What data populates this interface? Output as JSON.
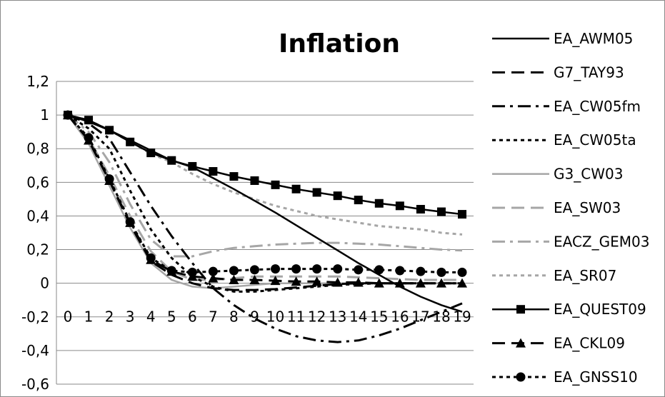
{
  "chart_data": {
    "type": "line",
    "title": "Inflation",
    "xlabel": "",
    "ylabel": "",
    "x": [
      0,
      1,
      2,
      3,
      4,
      5,
      6,
      7,
      8,
      9,
      10,
      11,
      12,
      13,
      14,
      15,
      16,
      17,
      18,
      19
    ],
    "x_tick_labels": [
      "0",
      "1",
      "2",
      "3",
      "4",
      "5",
      "6",
      "7",
      "8",
      "9",
      "10",
      "11",
      "12",
      "13",
      "14",
      "15",
      "16",
      "17",
      "18",
      "19"
    ],
    "y_tick_labels": [
      "1,2",
      "1",
      "0,8",
      "0,6",
      "0,4",
      "0,2",
      "0",
      "-0,2",
      "-0,4",
      "-0,6"
    ],
    "ylim": [
      -0.6,
      1.2
    ],
    "grid": "horizontal",
    "legend_position": "right",
    "series": [
      {
        "name": "EA_AWM05",
        "color": "#000000",
        "values": [
          1.0,
          0.96,
          0.91,
          0.85,
          0.79,
          0.73,
          0.69,
          0.625,
          0.56,
          0.49,
          0.42,
          0.345,
          0.27,
          0.195,
          0.12,
          0.05,
          -0.02,
          -0.08,
          -0.13,
          -0.17
        ]
      },
      {
        "name": "G7_TAY93",
        "color": "#000000",
        "values": [
          1.0,
          0.85,
          0.61,
          0.35,
          0.13,
          0.05,
          0.0,
          -0.03,
          -0.04,
          -0.04,
          -0.035,
          -0.025,
          -0.015,
          -0.005,
          0.0,
          0.0,
          0.0,
          0.0,
          0.0,
          0.0
        ]
      },
      {
        "name": "EA_CW05fm",
        "color": "#000000",
        "values": [
          1.0,
          0.95,
          0.86,
          0.66,
          0.46,
          0.28,
          0.12,
          -0.03,
          -0.13,
          -0.21,
          -0.27,
          -0.315,
          -0.34,
          -0.35,
          -0.34,
          -0.31,
          -0.27,
          -0.22,
          -0.17,
          -0.12
        ]
      },
      {
        "name": "EA_CW05ta",
        "color": "#000000",
        "values": [
          1.0,
          0.92,
          0.8,
          0.55,
          0.32,
          0.15,
          0.04,
          -0.02,
          -0.05,
          -0.05,
          -0.04,
          -0.03,
          -0.02,
          -0.01,
          -0.005,
          0.0,
          0.0,
          0.0,
          0.0,
          0.0
        ]
      },
      {
        "name": "G3_CW03",
        "color": "#a6a6a6",
        "values": [
          1.0,
          0.83,
          0.58,
          0.33,
          0.12,
          0.02,
          -0.02,
          -0.03,
          -0.02,
          -0.01,
          0.0,
          0.0,
          0.0,
          0.0,
          0.0,
          0.0,
          0.0,
          0.0,
          0.0,
          0.0
        ]
      },
      {
        "name": "EA_SW03",
        "color": "#a6a6a6",
        "values": [
          1.0,
          0.86,
          0.64,
          0.4,
          0.19,
          0.07,
          0.02,
          0.02,
          0.03,
          0.04,
          0.04,
          0.04,
          0.04,
          0.04,
          0.035,
          0.03,
          0.025,
          0.02,
          0.02,
          0.02
        ]
      },
      {
        "name": "EACZ_GEM03",
        "color": "#a6a6a6",
        "values": [
          1.0,
          0.9,
          0.72,
          0.47,
          0.26,
          0.16,
          0.16,
          0.19,
          0.21,
          0.22,
          0.23,
          0.235,
          0.24,
          0.24,
          0.235,
          0.23,
          0.22,
          0.21,
          0.2,
          0.195
        ]
      },
      {
        "name": "EA_SR07",
        "color": "#a6a6a6",
        "values": [
          1.0,
          0.97,
          0.91,
          0.84,
          0.77,
          0.72,
          0.65,
          0.59,
          0.54,
          0.5,
          0.46,
          0.43,
          0.4,
          0.38,
          0.36,
          0.34,
          0.33,
          0.32,
          0.3,
          0.29
        ]
      },
      {
        "name": "EA_QUEST09",
        "color": "#000000",
        "values": [
          1.0,
          0.97,
          0.91,
          0.84,
          0.775,
          0.73,
          0.695,
          0.665,
          0.635,
          0.61,
          0.585,
          0.56,
          0.54,
          0.52,
          0.495,
          0.475,
          0.46,
          0.44,
          0.425,
          0.41
        ]
      },
      {
        "name": "EA_CKL09",
        "color": "#000000",
        "values": [
          1.0,
          0.85,
          0.61,
          0.36,
          0.14,
          0.07,
          0.04,
          0.03,
          0.02,
          0.02,
          0.015,
          0.01,
          0.01,
          0.005,
          0.005,
          0.0,
          0.0,
          0.0,
          0.0,
          0.0
        ]
      },
      {
        "name": "EA_GNSS10",
        "color": "#000000",
        "values": [
          1.0,
          0.865,
          0.62,
          0.365,
          0.15,
          0.075,
          0.065,
          0.07,
          0.075,
          0.08,
          0.085,
          0.085,
          0.085,
          0.085,
          0.08,
          0.08,
          0.075,
          0.07,
          0.065,
          0.065
        ]
      }
    ]
  }
}
